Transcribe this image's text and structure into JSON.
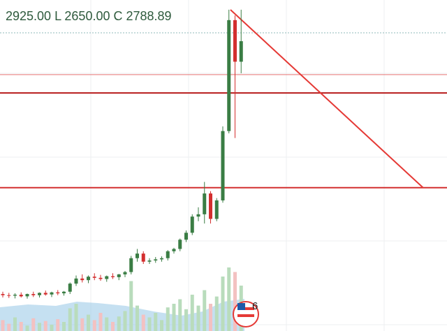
{
  "chart_data": {
    "type": "candlestick",
    "header": "2925.00 L 2650.00 C 2788.89",
    "badge": "6",
    "open": [
      1695,
      1690,
      1688,
      1692,
      1685,
      1695,
      1690,
      1700,
      1693,
      1702,
      1698,
      1705,
      1740,
      1762,
      1755,
      1770,
      1765,
      1760,
      1772,
      1768,
      1780,
      1790,
      1850,
      1870,
      1835,
      1840,
      1845,
      1850,
      1880,
      1890,
      1930,
      1960,
      2030,
      2040,
      2130,
      2020,
      2100,
      2400,
      2880,
      2700
    ],
    "high": [
      1705,
      1700,
      1698,
      1702,
      1697,
      1705,
      1702,
      1710,
      1705,
      1712,
      1708,
      1745,
      1775,
      1780,
      1775,
      1785,
      1778,
      1775,
      1785,
      1782,
      1795,
      1860,
      1890,
      1880,
      1850,
      1855,
      1858,
      1885,
      1895,
      1935,
      1970,
      2040,
      2070,
      2180,
      2140,
      2110,
      2420,
      2925,
      2900,
      2925
    ],
    "low": [
      1680,
      1678,
      1676,
      1680,
      1675,
      1682,
      1680,
      1688,
      1682,
      1690,
      1688,
      1695,
      1730,
      1745,
      1742,
      1755,
      1752,
      1748,
      1760,
      1755,
      1768,
      1780,
      1835,
      1825,
      1825,
      1830,
      1835,
      1840,
      1870,
      1880,
      1920,
      1950,
      2010,
      2000,
      2000,
      2010,
      2090,
      2390,
      2370,
      2650
    ],
    "close": [
      1690,
      1688,
      1692,
      1685,
      1695,
      1690,
      1700,
      1693,
      1702,
      1698,
      1705,
      1740,
      1762,
      1755,
      1770,
      1765,
      1760,
      1772,
      1768,
      1780,
      1790,
      1850,
      1870,
      1835,
      1840,
      1845,
      1850,
      1880,
      1890,
      1930,
      1960,
      2030,
      2040,
      2130,
      2020,
      2100,
      2400,
      2880,
      2700,
      2788.89
    ],
    "volume": [
      12,
      8,
      15,
      10,
      6,
      14,
      9,
      11,
      7,
      13,
      10,
      25,
      30,
      14,
      18,
      12,
      20,
      15,
      10,
      16,
      22,
      55,
      28,
      18,
      15,
      20,
      12,
      26,
      30,
      35,
      24,
      40,
      28,
      45,
      30,
      38,
      60,
      70,
      65,
      50
    ],
    "up_color": "#3a7d44",
    "down_color": "#d32f2f",
    "volume_up_color": "#b9dcbc",
    "volume_down_color": "#f3c1c1",
    "ylim": [
      1535,
      2967
    ],
    "volume_lim": [
      0,
      100
    ],
    "levels": [
      {
        "value": 2825,
        "color": "#8fb8b8",
        "width": 1,
        "dash": "2 2"
      },
      {
        "value": 2644,
        "color": "#e57373",
        "width": 1,
        "dash": "none"
      },
      {
        "value": 2565,
        "color": "#b71c1c",
        "width": 2,
        "dash": "none"
      },
      {
        "value": 2155,
        "color": "#d32f2f",
        "width": 2,
        "dash": "none"
      }
    ]
  }
}
